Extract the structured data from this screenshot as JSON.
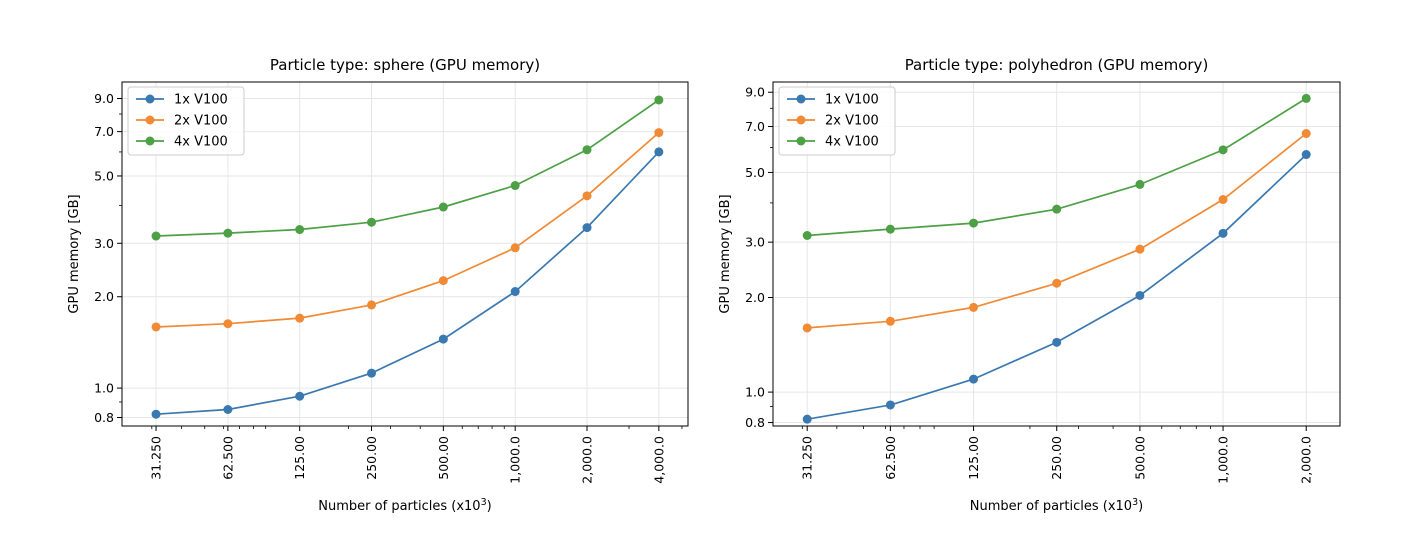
{
  "chart_data": [
    {
      "type": "line",
      "title": "Particle type: sphere (GPU memory)",
      "xlabel": "Number of particles (x10",
      "xlabel_sup": "3",
      "xlabel_close": ")",
      "ylabel": "GPU memory [GB]",
      "yscale": "log",
      "xscale": "log",
      "ylim": [
        0.75,
        10.2
      ],
      "grid": true,
      "legend_loc": "upper left",
      "categories": [
        "31.250",
        "62.500",
        "125.00",
        "250.00",
        "500.00",
        "1,000.0",
        "2,000.0",
        "4,000.0"
      ],
      "x": [
        31.25,
        62.5,
        125,
        250,
        500,
        1000,
        2000,
        4000
      ],
      "xlim": [
        22.5,
        5300
      ],
      "yticks": [
        0.8,
        1.0,
        2.0,
        3.0,
        5.0,
        7.0,
        9.0
      ],
      "ytick_labels": [
        "0.8",
        "1.0",
        "2.0",
        "3.0",
        "5.0",
        "7.0",
        "9.0"
      ],
      "series": [
        {
          "name": "1x V100",
          "color": "#3a78b0",
          "values": [
            0.82,
            0.85,
            0.94,
            1.12,
            1.45,
            2.08,
            3.38,
            6.0
          ]
        },
        {
          "name": "2x V100",
          "color": "#f18a35",
          "values": [
            1.59,
            1.63,
            1.7,
            1.88,
            2.26,
            2.9,
            4.3,
            6.95
          ]
        },
        {
          "name": "4x V100",
          "color": "#4da045",
          "values": [
            3.17,
            3.24,
            3.33,
            3.52,
            3.95,
            4.65,
            6.1,
            8.9
          ]
        }
      ]
    },
    {
      "type": "line",
      "title": "Particle type: polyhedron (GPU memory)",
      "xlabel": "Number of particles (x10",
      "xlabel_sup": "3",
      "xlabel_close": ")",
      "ylabel": "GPU memory [GB]",
      "yscale": "log",
      "xscale": "log",
      "ylim": [
        0.78,
        9.7
      ],
      "grid": true,
      "legend_loc": "upper left",
      "categories": [
        "31.250",
        "62.500",
        "125.00",
        "250.00",
        "500.00",
        "1,000.0",
        "2,000.0"
      ],
      "x": [
        31.25,
        62.5,
        125,
        250,
        500,
        1000,
        2000
      ],
      "xlim": [
        23.5,
        2650
      ],
      "yticks": [
        0.8,
        1.0,
        2.0,
        3.0,
        5.0,
        7.0,
        9.0
      ],
      "ytick_labels": [
        "0.8",
        "1.0",
        "2.0",
        "3.0",
        "5.0",
        "7.0",
        "9.0"
      ],
      "series": [
        {
          "name": "1x V100",
          "color": "#3a78b0",
          "values": [
            0.82,
            0.91,
            1.1,
            1.44,
            2.03,
            3.2,
            5.7
          ]
        },
        {
          "name": "2x V100",
          "color": "#f18a35",
          "values": [
            1.6,
            1.68,
            1.86,
            2.22,
            2.85,
            4.1,
            6.65
          ]
        },
        {
          "name": "4x V100",
          "color": "#4da045",
          "values": [
            3.15,
            3.3,
            3.45,
            3.82,
            4.58,
            5.9,
            8.6
          ]
        }
      ]
    }
  ]
}
